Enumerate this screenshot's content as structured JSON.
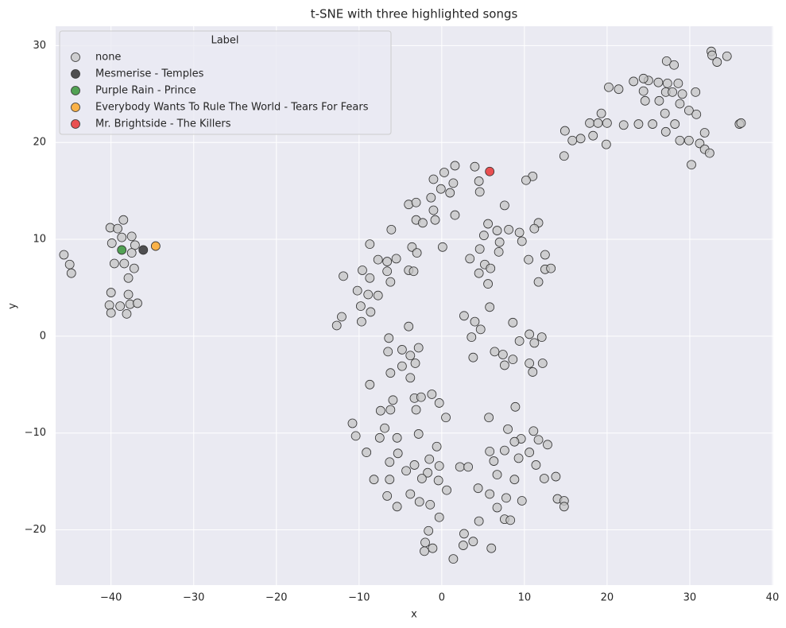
{
  "chart_data": {
    "type": "scatter",
    "title": "t-SNE with three highlighted songs",
    "x_label": "x",
    "y_label": "y",
    "legend_title": "Label",
    "legend": "upper left",
    "grid": true,
    "xlim": [
      -46.7,
      40.1
    ],
    "ylim": [
      -25.7,
      32
    ],
    "xticks": [
      {
        "value": -40,
        "label": "−40"
      },
      {
        "value": -30,
        "label": "−30"
      },
      {
        "value": -20,
        "label": "−20"
      },
      {
        "value": -10,
        "label": "−10"
      },
      0,
      10,
      20,
      30,
      40
    ],
    "yticks": [
      {
        "value": -20,
        "label": "−20"
      },
      {
        "value": -10,
        "label": "−10"
      },
      0,
      10,
      20,
      30
    ],
    "series": [
      {
        "name": "none",
        "color": "#c4c4c4",
        "x": [
          -45.7,
          -45.0,
          -44.8,
          -40.1,
          -39.2,
          -38.5,
          -39.9,
          -38.7,
          -37.5,
          -37.1,
          -39.6,
          -38.4,
          -37.5,
          -37.2,
          -37.9,
          -40.0,
          -37.9,
          -37.7,
          -40.2,
          -38.9,
          -36.8,
          -40.0,
          -38.1,
          32.6,
          32.7,
          33.3,
          34.5,
          27.2,
          28.1,
          25.0,
          26.2,
          27.3,
          28.6,
          24.4,
          23.2,
          21.4,
          20.2,
          24.4,
          27.1,
          27.9,
          29.1,
          30.7,
          26.3,
          24.6,
          28.8,
          29.9,
          30.8,
          19.3,
          27.0,
          28.2,
          25.5,
          23.8,
          22.0,
          17.9,
          18.9,
          20.0,
          14.9,
          27.1,
          28.8,
          29.9,
          16.8,
          15.8,
          31.8,
          31.2,
          31.8,
          18.3,
          36.0,
          36.2,
          32.4,
          30.2,
          14.8,
          19.9,
          1.6,
          4.0,
          0.3,
          4.5,
          -1.0,
          1.4,
          11.0,
          10.2,
          -0.1,
          1.0,
          4.6,
          -1.3,
          -4.0,
          -3.1,
          -1.0,
          1.6,
          7.6,
          -6.1,
          -3.1,
          -2.3,
          -0.8,
          5.6,
          11.7,
          6.7,
          8.1,
          9.4,
          11.2,
          5.1,
          7.0,
          9.7,
          0.1,
          -3.6,
          -8.7,
          -3.0,
          4.6,
          6.9,
          3.4,
          -7.7,
          -6.6,
          -5.5,
          10.5,
          12.5,
          5.2,
          5.9,
          12.5,
          13.2,
          -9.6,
          -6.6,
          -4.0,
          -3.4,
          4.5,
          -11.9,
          -8.7,
          -6.2,
          5.6,
          11.7,
          -10.2,
          -8.9,
          -7.7,
          -9.8,
          5.8,
          -8.6,
          -12.1,
          2.7,
          4.0,
          8.6,
          -9.7,
          -12.7,
          -4.0,
          4.7,
          10.6,
          3.6,
          12.1,
          -6.4,
          9.4,
          11.2,
          -2.8,
          -4.8,
          6.4,
          -6.5,
          -3.8,
          7.4,
          8.6,
          3.8,
          -3.2,
          -4.8,
          10.6,
          12.2,
          7.6,
          -6.2,
          11.0,
          -3.8,
          -8.7,
          -1.2,
          -3.3,
          -2.5,
          -5.9,
          -0.3,
          8.9,
          -7.4,
          -6.2,
          -3.1,
          0.5,
          5.7,
          -10.8,
          -6.9,
          8.0,
          11.1,
          -2.8,
          -10.4,
          -7.5,
          -5.4,
          9.6,
          11.7,
          8.8,
          12.8,
          -0.6,
          5.8,
          7.6,
          10.6,
          -9.1,
          -5.3,
          -1.5,
          6.3,
          9.3,
          -6.3,
          -3.3,
          11.4,
          2.2,
          3.2,
          -0.3,
          -4.3,
          -1.7,
          6.7,
          -2.4,
          -8.2,
          -6.3,
          -0.4,
          12.4,
          13.8,
          8.8,
          4.4,
          0.6,
          -3.8,
          -6.6,
          5.8,
          7.8,
          14.0,
          14.8,
          9.7,
          -2.7,
          -1.4,
          -5.4,
          6.7,
          14.8,
          -0.3,
          7.6,
          8.3,
          4.5,
          -1.6,
          2.7,
          -2.0,
          3.8,
          2.6,
          -1.1,
          6.0,
          -2.1,
          1.4
        ],
        "values": [
          8.4,
          7.4,
          6.5,
          11.2,
          11.1,
          12.0,
          9.6,
          10.2,
          10.3,
          9.4,
          7.5,
          7.5,
          8.6,
          7.0,
          6.0,
          4.5,
          4.3,
          3.3,
          3.2,
          3.1,
          3.4,
          2.4,
          2.3,
          29.4,
          29.0,
          28.3,
          28.9,
          28.4,
          28.0,
          26.4,
          26.2,
          26.1,
          26.1,
          26.6,
          26.3,
          25.5,
          25.7,
          25.3,
          25.2,
          25.2,
          25.0,
          25.2,
          24.3,
          24.3,
          24.0,
          23.3,
          22.9,
          23.0,
          23.0,
          21.9,
          21.9,
          21.9,
          21.8,
          22.0,
          22.0,
          22.0,
          21.2,
          21.1,
          20.2,
          20.2,
          20.4,
          20.2,
          21.0,
          19.9,
          19.3,
          20.7,
          21.9,
          22.0,
          18.9,
          17.7,
          18.6,
          19.8,
          17.6,
          17.5,
          16.9,
          16.0,
          16.2,
          15.8,
          16.5,
          16.1,
          15.2,
          14.8,
          14.9,
          14.3,
          13.6,
          13.8,
          13.0,
          12.5,
          13.5,
          11.0,
          12.0,
          11.7,
          12.0,
          11.6,
          11.7,
          10.9,
          11.0,
          10.7,
          11.1,
          10.4,
          9.7,
          9.8,
          9.2,
          9.2,
          9.5,
          8.6,
          9.0,
          8.7,
          8.0,
          7.9,
          7.7,
          8.0,
          7.9,
          8.4,
          7.4,
          7.0,
          6.9,
          7.0,
          6.8,
          6.7,
          6.8,
          6.7,
          6.5,
          6.2,
          6.0,
          5.6,
          5.4,
          5.6,
          4.7,
          4.3,
          4.2,
          3.1,
          3.0,
          2.5,
          2.0,
          2.1,
          1.5,
          1.4,
          1.5,
          1.1,
          1.0,
          0.7,
          0.2,
          -0.1,
          -0.1,
          -0.2,
          -0.5,
          -0.7,
          -1.2,
          -1.4,
          -1.6,
          -1.6,
          -2.0,
          -1.9,
          -2.4,
          -2.2,
          -2.8,
          -3.1,
          -2.8,
          -2.8,
          -3.0,
          -3.8,
          -3.7,
          -4.3,
          -5.0,
          -6.0,
          -6.4,
          -6.3,
          -6.6,
          -6.9,
          -7.3,
          -7.7,
          -7.6,
          -7.6,
          -8.4,
          -8.4,
          -9.0,
          -9.5,
          -9.6,
          -9.8,
          -10.1,
          -10.3,
          -10.5,
          -10.5,
          -10.6,
          -10.7,
          -10.9,
          -11.2,
          -11.4,
          -11.9,
          -11.8,
          -12.0,
          -12.0,
          -12.1,
          -12.7,
          -12.9,
          -12.6,
          -13.0,
          -13.3,
          -13.3,
          -13.5,
          -13.5,
          -13.4,
          -13.9,
          -14.1,
          -14.3,
          -14.7,
          -14.8,
          -14.8,
          -14.9,
          -14.7,
          -14.5,
          -14.8,
          -15.7,
          -15.9,
          -16.3,
          -16.5,
          -16.3,
          -16.7,
          -16.8,
          -17.0,
          -17.0,
          -17.1,
          -17.4,
          -17.6,
          -17.7,
          -17.6,
          -18.7,
          -18.9,
          -19.0,
          -19.1,
          -20.1,
          -20.4,
          -21.3,
          -21.2,
          -21.6,
          -21.9,
          -21.9,
          -22.2,
          -23.0
        ]
      },
      {
        "name": "Mesmerise - Temples",
        "color": "#1a1a1a",
        "x": [
          -36.1
        ],
        "values": [
          8.9
        ]
      },
      {
        "name": "Purple Rain - Prince",
        "color": "#1f8a1f",
        "x": [
          -38.7
        ],
        "values": [
          8.9
        ]
      },
      {
        "name": "Everybody Wants To Rule The World - Tears For Fears",
        "color": "#ff9f10",
        "x": [
          -34.6
        ],
        "values": [
          9.3
        ]
      },
      {
        "name": "Mr. Brightside - The Killers",
        "color": "#e81c1c",
        "x": [
          5.8
        ],
        "values": [
          17.0
        ]
      }
    ]
  }
}
